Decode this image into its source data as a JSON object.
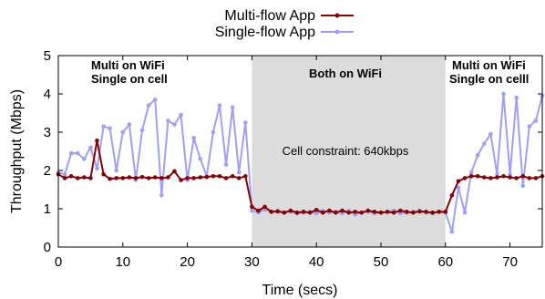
{
  "chart_data": {
    "type": "line",
    "xlabel": "Time (secs)",
    "ylabel": "Throughput (Mbps)",
    "xlim": [
      0,
      75
    ],
    "ylim": [
      0,
      5
    ],
    "xticks": [
      0,
      10,
      20,
      30,
      40,
      50,
      60,
      70
    ],
    "yticks": [
      0,
      1,
      2,
      3,
      4,
      5
    ],
    "grid": false,
    "legend_placement": "top-center",
    "shaded_region": {
      "x_start": 30,
      "x_end": 60,
      "color": "#dcdcdc"
    },
    "annotations": [
      {
        "lines": [
          "Multi on WiFi",
          "Single on cell"
        ],
        "bold": true
      },
      {
        "lines": [
          "Both on WiFi"
        ],
        "bold": true
      },
      {
        "lines": [
          "Cell constraint: 640kbps"
        ],
        "bold": false
      },
      {
        "lines": [
          "Multi on WiFi",
          "Single on celll"
        ],
        "bold": true
      }
    ],
    "series": [
      {
        "name": "Multi-flow App",
        "color": "#8b0000",
        "points": [
          [
            0,
            1.9
          ],
          [
            1,
            1.8
          ],
          [
            2,
            1.85
          ],
          [
            3,
            1.8
          ],
          [
            4,
            1.82
          ],
          [
            5,
            1.8
          ],
          [
            6,
            2.78
          ],
          [
            7,
            1.9
          ],
          [
            8,
            1.78
          ],
          [
            9,
            1.8
          ],
          [
            10,
            1.8
          ],
          [
            11,
            1.82
          ],
          [
            12,
            1.8
          ],
          [
            13,
            1.83
          ],
          [
            14,
            1.8
          ],
          [
            15,
            1.82
          ],
          [
            16,
            1.8
          ],
          [
            17,
            1.82
          ],
          [
            18,
            1.98
          ],
          [
            19,
            1.75
          ],
          [
            20,
            1.8
          ],
          [
            21,
            1.8
          ],
          [
            22,
            1.82
          ],
          [
            23,
            1.83
          ],
          [
            24,
            1.85
          ],
          [
            25,
            1.85
          ],
          [
            26,
            1.8
          ],
          [
            27,
            1.85
          ],
          [
            28,
            1.8
          ],
          [
            29,
            1.85
          ],
          [
            30,
            1.05
          ],
          [
            31,
            0.95
          ],
          [
            32,
            1.05
          ],
          [
            33,
            0.92
          ],
          [
            34,
            0.93
          ],
          [
            35,
            0.9
          ],
          [
            36,
            0.95
          ],
          [
            37,
            0.9
          ],
          [
            38,
            0.92
          ],
          [
            39,
            0.9
          ],
          [
            40,
            0.97
          ],
          [
            41,
            0.9
          ],
          [
            42,
            0.95
          ],
          [
            43,
            0.9
          ],
          [
            44,
            0.95
          ],
          [
            45,
            0.9
          ],
          [
            46,
            0.92
          ],
          [
            47,
            0.9
          ],
          [
            48,
            0.95
          ],
          [
            49,
            0.92
          ],
          [
            50,
            0.9
          ],
          [
            51,
            0.92
          ],
          [
            52,
            0.9
          ],
          [
            53,
            0.95
          ],
          [
            54,
            0.92
          ],
          [
            55,
            0.9
          ],
          [
            56,
            0.93
          ],
          [
            57,
            0.92
          ],
          [
            58,
            0.9
          ],
          [
            59,
            0.92
          ],
          [
            60,
            0.92
          ],
          [
            61,
            1.35
          ],
          [
            62,
            1.72
          ],
          [
            63,
            1.8
          ],
          [
            64,
            1.85
          ],
          [
            65,
            1.85
          ],
          [
            66,
            1.82
          ],
          [
            67,
            1.8
          ],
          [
            68,
            1.82
          ],
          [
            69,
            1.85
          ],
          [
            70,
            1.82
          ],
          [
            71,
            1.8
          ],
          [
            72,
            1.85
          ],
          [
            73,
            1.8
          ],
          [
            74,
            1.8
          ],
          [
            75,
            1.85
          ]
        ]
      },
      {
        "name": "Single-flow App",
        "color": "#9fa0f5",
        "points": [
          [
            0,
            1.95
          ],
          [
            1,
            1.9
          ],
          [
            2,
            2.45
          ],
          [
            3,
            2.45
          ],
          [
            4,
            2.3
          ],
          [
            5,
            2.6
          ],
          [
            6,
            2.05
          ],
          [
            7,
            3.15
          ],
          [
            8,
            3.1
          ],
          [
            9,
            2.0
          ],
          [
            10,
            3.0
          ],
          [
            11,
            3.2
          ],
          [
            12,
            1.75
          ],
          [
            13,
            3.05
          ],
          [
            14,
            3.7
          ],
          [
            15,
            3.85
          ],
          [
            16,
            1.35
          ],
          [
            17,
            3.3
          ],
          [
            18,
            3.2
          ],
          [
            19,
            3.45
          ],
          [
            20,
            1.75
          ],
          [
            21,
            2.85
          ],
          [
            22,
            2.3
          ],
          [
            23,
            1.85
          ],
          [
            24,
            3.0
          ],
          [
            25,
            3.7
          ],
          [
            26,
            2.15
          ],
          [
            27,
            3.65
          ],
          [
            28,
            1.95
          ],
          [
            29,
            3.25
          ],
          [
            30,
            0.95
          ],
          [
            31,
            0.9
          ],
          [
            32,
            0.98
          ],
          [
            33,
            0.92
          ],
          [
            34,
            0.95
          ],
          [
            35,
            0.9
          ],
          [
            36,
            0.92
          ],
          [
            37,
            0.88
          ],
          [
            38,
            0.9
          ],
          [
            39,
            0.92
          ],
          [
            40,
            0.88
          ],
          [
            41,
            0.95
          ],
          [
            42,
            0.9
          ],
          [
            43,
            0.92
          ],
          [
            44,
            0.88
          ],
          [
            45,
            0.95
          ],
          [
            46,
            0.85
          ],
          [
            47,
            0.9
          ],
          [
            48,
            0.92
          ],
          [
            49,
            0.88
          ],
          [
            50,
            0.9
          ],
          [
            51,
            0.92
          ],
          [
            52,
            0.95
          ],
          [
            53,
            0.88
          ],
          [
            54,
            0.9
          ],
          [
            55,
            0.92
          ],
          [
            56,
            0.95
          ],
          [
            57,
            0.9
          ],
          [
            58,
            0.88
          ],
          [
            59,
            0.92
          ],
          [
            60,
            0.9
          ],
          [
            61,
            0.4
          ],
          [
            62,
            1.55
          ],
          [
            63,
            0.9
          ],
          [
            64,
            1.95
          ],
          [
            65,
            2.4
          ],
          [
            66,
            2.7
          ],
          [
            67,
            2.95
          ],
          [
            68,
            1.9
          ],
          [
            69,
            4.0
          ],
          [
            70,
            1.9
          ],
          [
            71,
            3.9
          ],
          [
            72,
            1.6
          ],
          [
            73,
            3.15
          ],
          [
            74,
            3.3
          ],
          [
            75,
            3.95
          ]
        ]
      }
    ]
  }
}
